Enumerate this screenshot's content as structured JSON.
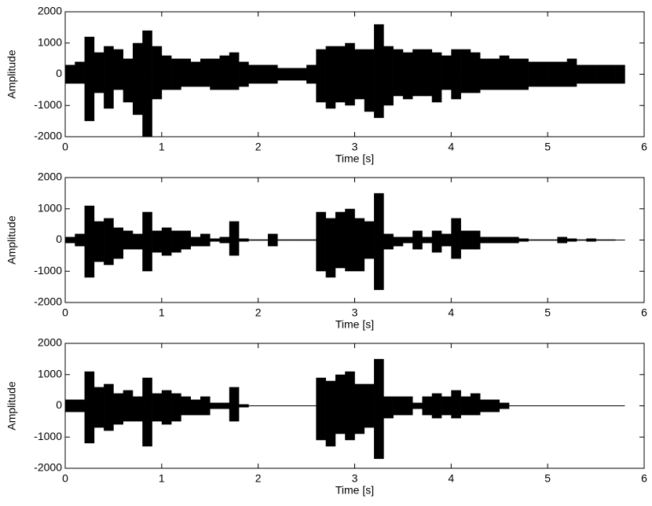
{
  "chart_data": [
    {
      "type": "area",
      "xlabel": "Time [s]",
      "ylabel": "Amplitude",
      "x": [
        0,
        0.1,
        0.2,
        0.3,
        0.4,
        0.5,
        0.6,
        0.7,
        0.8,
        0.9,
        1.0,
        1.1,
        1.2,
        1.3,
        1.4,
        1.5,
        1.6,
        1.7,
        1.8,
        1.9,
        2.0,
        2.1,
        2.2,
        2.3,
        2.4,
        2.5,
        2.6,
        2.7,
        2.8,
        2.9,
        3.0,
        3.1,
        3.2,
        3.3,
        3.4,
        3.5,
        3.6,
        3.7,
        3.8,
        3.9,
        4.0,
        4.1,
        4.2,
        4.3,
        4.4,
        4.5,
        4.6,
        4.7,
        4.8,
        4.9,
        5.0,
        5.1,
        5.2,
        5.3,
        5.4,
        5.5,
        5.6,
        5.7
      ],
      "series": [
        {
          "color": "#000000",
          "values": [
            300,
            400,
            1200,
            700,
            900,
            800,
            500,
            1000,
            1400,
            900,
            600,
            500,
            500,
            400,
            500,
            500,
            600,
            700,
            400,
            300,
            300,
            300,
            200,
            200,
            200,
            300,
            800,
            900,
            900,
            1000,
            800,
            800,
            1600,
            900,
            800,
            700,
            800,
            800,
            700,
            600,
            800,
            800,
            700,
            500,
            500,
            600,
            500,
            500,
            400,
            400,
            400,
            400,
            500,
            300,
            300,
            300,
            300,
            300
          ]
        },
        {
          "color": "#000000",
          "values": [
            -300,
            -300,
            -1500,
            -600,
            -1100,
            -500,
            -900,
            -1300,
            -2000,
            -800,
            -500,
            -500,
            -400,
            -400,
            -400,
            -500,
            -500,
            -500,
            -400,
            -300,
            -300,
            -300,
            -200,
            -200,
            -200,
            -300,
            -900,
            -1100,
            -900,
            -1000,
            -800,
            -1200,
            -1400,
            -1000,
            -700,
            -800,
            -700,
            -700,
            -900,
            -500,
            -800,
            -600,
            -600,
            -500,
            -500,
            -500,
            -500,
            -500,
            -400,
            -400,
            -400,
            -400,
            -400,
            -300,
            -300,
            -300,
            -300,
            -300
          ]
        }
      ],
      "xlim": [
        0,
        6
      ],
      "ylim": [
        -2000,
        2000
      ],
      "xticks": [
        0,
        1,
        2,
        3,
        4,
        5,
        6
      ],
      "yticks": [
        -2000,
        -1000,
        0,
        1000,
        2000
      ]
    },
    {
      "type": "area",
      "xlabel": "Time [s]",
      "ylabel": "Amplitude",
      "x": [
        0,
        0.1,
        0.2,
        0.3,
        0.4,
        0.5,
        0.6,
        0.7,
        0.8,
        0.9,
        1.0,
        1.1,
        1.2,
        1.3,
        1.4,
        1.5,
        1.6,
        1.7,
        1.8,
        1.9,
        2.0,
        2.1,
        2.2,
        2.3,
        2.4,
        2.5,
        2.6,
        2.7,
        2.8,
        2.9,
        3.0,
        3.1,
        3.2,
        3.3,
        3.4,
        3.5,
        3.6,
        3.7,
        3.8,
        3.9,
        4.0,
        4.1,
        4.2,
        4.3,
        4.4,
        4.5,
        4.6,
        4.7,
        4.8,
        4.9,
        5.0,
        5.1,
        5.2,
        5.3,
        5.4,
        5.5,
        5.6,
        5.7
      ],
      "series": [
        {
          "color": "#000000",
          "values": [
            100,
            200,
            1100,
            600,
            700,
            400,
            300,
            200,
            900,
            300,
            400,
            300,
            300,
            100,
            200,
            50,
            100,
            600,
            50,
            20,
            20,
            200,
            20,
            20,
            20,
            20,
            900,
            700,
            900,
            1000,
            700,
            600,
            1500,
            200,
            100,
            100,
            300,
            100,
            300,
            200,
            700,
            300,
            300,
            100,
            100,
            100,
            100,
            50,
            20,
            20,
            20,
            100,
            50,
            20,
            50,
            20,
            20,
            10
          ]
        },
        {
          "color": "#000000",
          "values": [
            -100,
            -200,
            -1200,
            -700,
            -800,
            -600,
            -300,
            -300,
            -1000,
            -400,
            -500,
            -400,
            -300,
            -200,
            -200,
            -50,
            -100,
            -500,
            -50,
            -20,
            -20,
            -200,
            -20,
            -20,
            -20,
            -20,
            -1000,
            -1200,
            -900,
            -1000,
            -1000,
            -600,
            -1600,
            -300,
            -200,
            -100,
            -300,
            -100,
            -400,
            -200,
            -600,
            -300,
            -300,
            -100,
            -100,
            -100,
            -100,
            -50,
            -20,
            -20,
            -20,
            -100,
            -50,
            -20,
            -50,
            -20,
            -20,
            -10
          ]
        }
      ],
      "xlim": [
        0,
        6
      ],
      "ylim": [
        -2000,
        2000
      ],
      "xticks": [
        0,
        1,
        2,
        3,
        4,
        5,
        6
      ],
      "yticks": [
        -2000,
        -1000,
        0,
        1000,
        2000
      ]
    },
    {
      "type": "area",
      "xlabel": "Time [s]",
      "ylabel": "Amplitude",
      "x": [
        0,
        0.1,
        0.2,
        0.3,
        0.4,
        0.5,
        0.6,
        0.7,
        0.8,
        0.9,
        1.0,
        1.1,
        1.2,
        1.3,
        1.4,
        1.5,
        1.6,
        1.7,
        1.8,
        1.9,
        2.0,
        2.1,
        2.2,
        2.3,
        2.4,
        2.5,
        2.6,
        2.7,
        2.8,
        2.9,
        3.0,
        3.1,
        3.2,
        3.3,
        3.4,
        3.5,
        3.6,
        3.7,
        3.8,
        3.9,
        4.0,
        4.1,
        4.2,
        4.3,
        4.4,
        4.5,
        4.6,
        4.7,
        4.8,
        4.9,
        5.0,
        5.1,
        5.2,
        5.3,
        5.4,
        5.5,
        5.6,
        5.7
      ],
      "series": [
        {
          "color": "#000000",
          "values": [
            200,
            200,
            1100,
            600,
            700,
            400,
            500,
            300,
            900,
            400,
            500,
            400,
            300,
            200,
            300,
            100,
            100,
            600,
            50,
            10,
            0,
            0,
            0,
            0,
            0,
            0,
            900,
            800,
            1000,
            1100,
            700,
            700,
            1500,
            300,
            300,
            300,
            100,
            300,
            400,
            300,
            500,
            300,
            400,
            200,
            200,
            100,
            0,
            0,
            0,
            0,
            0,
            0,
            0,
            0,
            0,
            0,
            0,
            0
          ]
        },
        {
          "color": "#000000",
          "values": [
            -200,
            -200,
            -1200,
            -700,
            -800,
            -600,
            -500,
            -500,
            -1300,
            -500,
            -600,
            -500,
            -300,
            -300,
            -300,
            -100,
            -100,
            -500,
            -50,
            -10,
            0,
            0,
            0,
            0,
            0,
            0,
            -1100,
            -1300,
            -900,
            -1100,
            -900,
            -700,
            -1700,
            -400,
            -300,
            -300,
            -100,
            -300,
            -400,
            -300,
            -400,
            -300,
            -300,
            -200,
            -200,
            -100,
            0,
            0,
            0,
            0,
            0,
            0,
            0,
            0,
            0,
            0,
            0,
            0
          ]
        }
      ],
      "xlim": [
        0,
        6
      ],
      "ylim": [
        -2000,
        2000
      ],
      "xticks": [
        0,
        1,
        2,
        3,
        4,
        5,
        6
      ],
      "yticks": [
        -2000,
        -1000,
        0,
        1000,
        2000
      ]
    }
  ]
}
